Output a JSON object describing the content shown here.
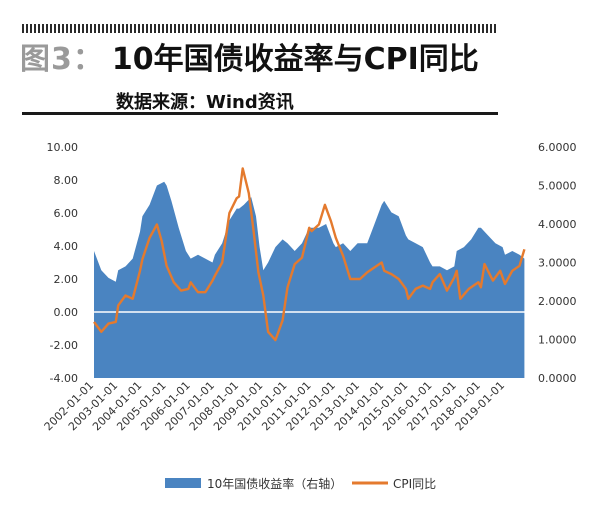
{
  "header": {
    "figure_label": "图3：",
    "title": "10年国债收益率与CPI同比",
    "source": "数据来源：Wind资讯"
  },
  "colors": {
    "yield_fill": "#4a84c1",
    "cpi_line": "#e47a2e",
    "zero_line": "#ffffff"
  },
  "chart_data": {
    "type": "area",
    "subtype": "area + line, dual axis",
    "left_axis": {
      "min": -4,
      "max": 10,
      "ticks": [
        "-4.00",
        "-2.00",
        "0.00",
        "2.00",
        "4.00",
        "6.00",
        "8.00",
        "10.00"
      ]
    },
    "right_axis": {
      "min": 0,
      "max": 6,
      "ticks": [
        "0.0000",
        "1.0000",
        "2.0000",
        "3.0000",
        "4.0000",
        "5.0000",
        "6.0000"
      ]
    },
    "x_ticks": [
      "2002-01-01",
      "2003-01-01",
      "2004-01-01",
      "2005-01-01",
      "2006-01-01",
      "2007-01-01",
      "2008-01-01",
      "2009-01-01",
      "2010-01-01",
      "2011-01-01",
      "2012-01-01",
      "2013-01-01",
      "2014-01-01",
      "2015-01-01",
      "2016-01-01",
      "2017-01-01",
      "2018-01-01",
      "2019-01-01"
    ],
    "legend": {
      "position": "bottom"
    },
    "series": [
      {
        "name": "10年国债收益率（右轴）",
        "kind": "area",
        "axis": "right",
        "points": [
          [
            2002.0,
            3.3
          ],
          [
            2002.3,
            2.8
          ],
          [
            2002.6,
            2.6
          ],
          [
            2002.9,
            2.5
          ],
          [
            2003.0,
            2.8
          ],
          [
            2003.3,
            2.9
          ],
          [
            2003.6,
            3.1
          ],
          [
            2003.9,
            3.8
          ],
          [
            2004.0,
            4.2
          ],
          [
            2004.3,
            4.5
          ],
          [
            2004.6,
            5.0
          ],
          [
            2004.9,
            5.1
          ],
          [
            2005.0,
            5.0
          ],
          [
            2005.2,
            4.6
          ],
          [
            2005.5,
            3.9
          ],
          [
            2005.8,
            3.3
          ],
          [
            2006.0,
            3.1
          ],
          [
            2006.3,
            3.2
          ],
          [
            2006.6,
            3.1
          ],
          [
            2006.9,
            3.0
          ],
          [
            2007.0,
            3.2
          ],
          [
            2007.3,
            3.5
          ],
          [
            2007.6,
            4.1
          ],
          [
            2007.9,
            4.4
          ],
          [
            2008.0,
            4.4
          ],
          [
            2008.2,
            4.5
          ],
          [
            2008.5,
            4.7
          ],
          [
            2008.7,
            4.2
          ],
          [
            2008.85,
            3.4
          ],
          [
            2009.0,
            2.8
          ],
          [
            2009.2,
            3.0
          ],
          [
            2009.5,
            3.4
          ],
          [
            2009.8,
            3.6
          ],
          [
            2010.0,
            3.5
          ],
          [
            2010.3,
            3.3
          ],
          [
            2010.6,
            3.5
          ],
          [
            2010.9,
            3.9
          ],
          [
            2011.0,
            3.9
          ],
          [
            2011.3,
            3.9
          ],
          [
            2011.6,
            4.0
          ],
          [
            2011.9,
            3.5
          ],
          [
            2012.0,
            3.4
          ],
          [
            2012.3,
            3.5
          ],
          [
            2012.6,
            3.3
          ],
          [
            2012.9,
            3.5
          ],
          [
            2013.0,
            3.5
          ],
          [
            2013.3,
            3.5
          ],
          [
            2013.6,
            4.0
          ],
          [
            2013.9,
            4.5
          ],
          [
            2014.0,
            4.6
          ],
          [
            2014.3,
            4.3
          ],
          [
            2014.6,
            4.2
          ],
          [
            2014.9,
            3.7
          ],
          [
            2015.0,
            3.6
          ],
          [
            2015.3,
            3.5
          ],
          [
            2015.6,
            3.4
          ],
          [
            2015.9,
            3.0
          ],
          [
            2016.0,
            2.9
          ],
          [
            2016.3,
            2.9
          ],
          [
            2016.6,
            2.8
          ],
          [
            2016.9,
            2.9
          ],
          [
            2017.0,
            3.3
          ],
          [
            2017.3,
            3.4
          ],
          [
            2017.6,
            3.6
          ],
          [
            2017.9,
            3.9
          ],
          [
            2018.0,
            3.9
          ],
          [
            2018.3,
            3.7
          ],
          [
            2018.6,
            3.5
          ],
          [
            2018.9,
            3.4
          ],
          [
            2019.0,
            3.2
          ],
          [
            2019.3,
            3.3
          ],
          [
            2019.6,
            3.2
          ],
          [
            2019.8,
            3.1
          ]
        ]
      },
      {
        "name": "CPI同比",
        "kind": "line",
        "axis": "left",
        "points": [
          [
            2002.0,
            -0.6
          ],
          [
            2002.3,
            -1.2
          ],
          [
            2002.6,
            -0.7
          ],
          [
            2002.9,
            -0.6
          ],
          [
            2003.0,
            0.4
          ],
          [
            2003.3,
            1.0
          ],
          [
            2003.6,
            0.8
          ],
          [
            2003.9,
            2.5
          ],
          [
            2004.0,
            3.2
          ],
          [
            2004.3,
            4.5
          ],
          [
            2004.6,
            5.3
          ],
          [
            2004.8,
            4.3
          ],
          [
            2005.0,
            2.8
          ],
          [
            2005.3,
            1.8
          ],
          [
            2005.6,
            1.3
          ],
          [
            2005.9,
            1.4
          ],
          [
            2006.0,
            1.8
          ],
          [
            2006.3,
            1.2
          ],
          [
            2006.6,
            1.2
          ],
          [
            2006.9,
            1.9
          ],
          [
            2007.0,
            2.2
          ],
          [
            2007.3,
            3.0
          ],
          [
            2007.6,
            6.0
          ],
          [
            2007.9,
            6.9
          ],
          [
            2008.0,
            7.0
          ],
          [
            2008.15,
            8.7
          ],
          [
            2008.4,
            7.2
          ],
          [
            2008.6,
            4.9
          ],
          [
            2008.8,
            2.4
          ],
          [
            2009.0,
            1.0
          ],
          [
            2009.2,
            -1.2
          ],
          [
            2009.5,
            -1.7
          ],
          [
            2009.8,
            -0.5
          ],
          [
            2010.0,
            1.5
          ],
          [
            2010.3,
            2.9
          ],
          [
            2010.6,
            3.3
          ],
          [
            2010.9,
            5.1
          ],
          [
            2011.0,
            4.9
          ],
          [
            2011.3,
            5.3
          ],
          [
            2011.55,
            6.5
          ],
          [
            2011.8,
            5.5
          ],
          [
            2012.0,
            4.5
          ],
          [
            2012.3,
            3.4
          ],
          [
            2012.6,
            2.0
          ],
          [
            2012.9,
            2.0
          ],
          [
            2013.0,
            2.0
          ],
          [
            2013.3,
            2.4
          ],
          [
            2013.6,
            2.7
          ],
          [
            2013.9,
            3.0
          ],
          [
            2014.0,
            2.5
          ],
          [
            2014.3,
            2.3
          ],
          [
            2014.6,
            2.0
          ],
          [
            2014.9,
            1.4
          ],
          [
            2015.0,
            0.8
          ],
          [
            2015.3,
            1.4
          ],
          [
            2015.6,
            1.6
          ],
          [
            2015.9,
            1.4
          ],
          [
            2016.0,
            1.8
          ],
          [
            2016.3,
            2.3
          ],
          [
            2016.6,
            1.3
          ],
          [
            2016.9,
            2.1
          ],
          [
            2017.0,
            2.5
          ],
          [
            2017.15,
            0.8
          ],
          [
            2017.5,
            1.4
          ],
          [
            2017.9,
            1.8
          ],
          [
            2018.0,
            1.5
          ],
          [
            2018.15,
            2.9
          ],
          [
            2018.5,
            1.9
          ],
          [
            2018.8,
            2.5
          ],
          [
            2019.0,
            1.7
          ],
          [
            2019.3,
            2.5
          ],
          [
            2019.6,
            2.8
          ],
          [
            2019.8,
            3.8
          ]
        ]
      }
    ]
  }
}
